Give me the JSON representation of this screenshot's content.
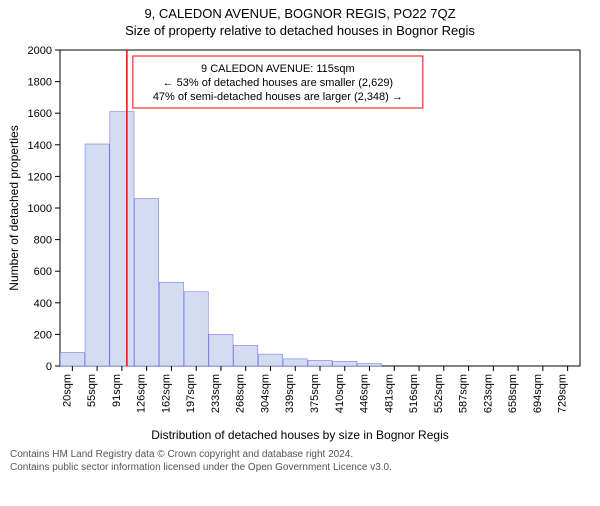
{
  "titles": {
    "line1": "9, CALEDON AVENUE, BOGNOR REGIS, PO22 7QZ",
    "line2": "Size of property relative to detached houses in Bognor Regis"
  },
  "chart": {
    "type": "histogram",
    "x_categories": [
      "20sqm",
      "55sqm",
      "91sqm",
      "126sqm",
      "162sqm",
      "197sqm",
      "233sqm",
      "268sqm",
      "304sqm",
      "339sqm",
      "375sqm",
      "410sqm",
      "446sqm",
      "481sqm",
      "516sqm",
      "552sqm",
      "587sqm",
      "623sqm",
      "658sqm",
      "694sqm",
      "729sqm"
    ],
    "values": [
      85,
      1405,
      1610,
      1060,
      530,
      470,
      200,
      130,
      75,
      45,
      35,
      30,
      15,
      0,
      0,
      0,
      0,
      0,
      0,
      0,
      0
    ],
    "bar_fill": "#d4dcf2",
    "bar_stroke": "#7a7aee",
    "background_color": "#ffffff",
    "plot_border_color": "#000000",
    "y": {
      "min": 0,
      "max": 2000,
      "ticks": [
        0,
        200,
        400,
        600,
        800,
        1000,
        1200,
        1400,
        1600,
        1800,
        2000
      ],
      "label": "Number of detached properties"
    },
    "x_label": "Distribution of detached houses by size in Bognor Regis",
    "tick_fontsize": 11,
    "label_fontsize": 12,
    "marker": {
      "x_category_index": 2.7,
      "color": "#ff0000"
    },
    "annotation": {
      "lines": [
        "9 CALEDON AVENUE: 115sqm",
        "← 53% of detached houses are smaller (2,629)",
        "47% of semi-detached houses are larger (2,348) →"
      ],
      "border_color": "#ff0000",
      "text_color": "#000000",
      "bg_color": "#ffffff"
    }
  },
  "footer": {
    "line1": "Contains HM Land Registry data © Crown copyright and database right 2024.",
    "line2": "Contains public sector information licensed under the Open Government Licence v3.0."
  }
}
